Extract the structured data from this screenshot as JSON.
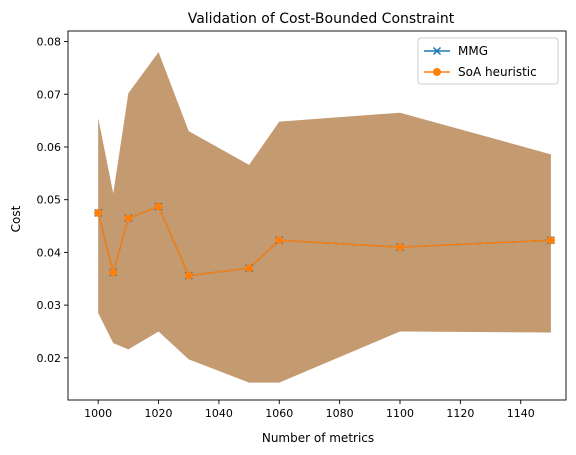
{
  "chart_data": {
    "type": "line",
    "title": "Validation of Cost-Bounded Constraint",
    "xlabel": "Number of metrics",
    "ylabel": "Cost",
    "xlim": [
      990,
      1155
    ],
    "ylim": [
      0.012,
      0.082
    ],
    "xticks": [
      1000,
      1020,
      1040,
      1060,
      1080,
      1100,
      1120,
      1140
    ],
    "yticks": [
      0.02,
      0.03,
      0.04,
      0.05,
      0.06,
      0.07,
      0.08
    ],
    "ytick_labels": [
      "0.02",
      "0.03",
      "0.04",
      "0.05",
      "0.06",
      "0.07",
      "0.08"
    ],
    "grid": false,
    "legend_position": "top-right",
    "x": [
      1000,
      1005,
      1010,
      1020,
      1030,
      1050,
      1060,
      1100,
      1150
    ],
    "series": [
      {
        "name": "MMG",
        "marker": "x",
        "color": "#1f77b4",
        "values": [
          0.0475,
          0.0362,
          0.0465,
          0.0487,
          0.0356,
          0.037,
          0.0423,
          0.041,
          0.0423
        ]
      },
      {
        "name": "SoA heuristic",
        "marker": "o",
        "color": "#ff7f0e",
        "values": [
          0.0475,
          0.0362,
          0.0465,
          0.0487,
          0.0356,
          0.037,
          0.0423,
          0.041,
          0.0423
        ]
      }
    ],
    "band": {
      "color": "#c49a70",
      "upper": [
        0.0655,
        0.0512,
        0.0702,
        0.078,
        0.063,
        0.0566,
        0.0648,
        0.0665,
        0.0586
      ],
      "lower": [
        0.0285,
        0.0228,
        0.0216,
        0.025,
        0.0197,
        0.0153,
        0.0153,
        0.025,
        0.0248
      ]
    }
  }
}
